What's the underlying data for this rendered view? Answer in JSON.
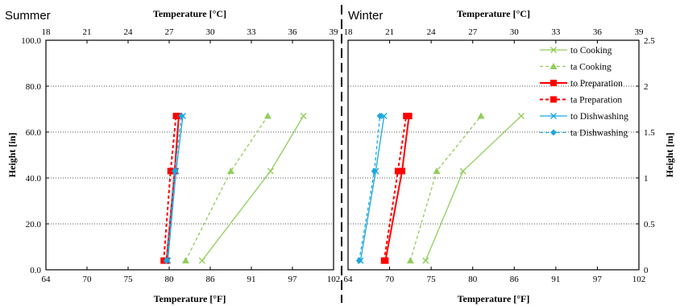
{
  "panels": {
    "summer": "Summer",
    "winter": "Winter"
  },
  "chart_data": [
    {
      "type": "line",
      "panel": "Summer",
      "xlabel_top": "Temperature [°C]",
      "xlabel_bottom": "Temperature [°F]",
      "ylabel_left": "Height [in]",
      "x_ticks_top": [
        "18",
        "21",
        "24",
        "27",
        "30",
        "33",
        "36",
        "39"
      ],
      "x_ticks_bottom": [
        "64",
        "70",
        "75",
        "80",
        "86",
        "91",
        "97",
        "102"
      ],
      "y_ticks_left": [
        "0.0",
        "20.0",
        "40.0",
        "60.0",
        "80.0",
        "100.0"
      ],
      "xlim_C": [
        18,
        39
      ],
      "ylim_in": [
        0,
        100
      ],
      "grid": true,
      "series": [
        {
          "name": "to Cooking",
          "color": "#8fce5a",
          "dash": false,
          "marker": "x",
          "temperature_C": [
            29.4,
            34.4,
            36.8
          ],
          "height_in": [
            4,
            43,
            67
          ]
        },
        {
          "name": "ta Cooking",
          "color": "#8fce5a",
          "dash": true,
          "marker": "triangle",
          "temperature_C": [
            28.2,
            31.5,
            34.2
          ],
          "height_in": [
            4,
            43,
            67
          ]
        },
        {
          "name": "to Preparation",
          "color": "#ff0000",
          "dash": false,
          "marker": "square",
          "temperature_C": [
            26.8,
            27.4,
            27.7
          ],
          "height_in": [
            4,
            43,
            67
          ]
        },
        {
          "name": "ta Preparation",
          "color": "#ff0000",
          "dash": true,
          "marker": "square",
          "temperature_C": [
            26.6,
            27.1,
            27.5
          ],
          "height_in": [
            4,
            43,
            67
          ]
        },
        {
          "name": "to Dishwashing",
          "color": "#1ba7e0",
          "dash": false,
          "marker": "x",
          "temperature_C": [
            26.9,
            27.5,
            28.0
          ],
          "height_in": [
            4,
            43,
            67
          ]
        },
        {
          "name": "ta Dishwashing",
          "color": "#1ba7e0",
          "dash": true,
          "marker": "diamond",
          "temperature_C": [
            26.8,
            27.4,
            27.9
          ],
          "height_in": [
            4,
            43,
            67
          ]
        }
      ]
    },
    {
      "type": "line",
      "panel": "Winter",
      "xlabel_top": "Temperature [°C]",
      "xlabel_bottom": "Temperature [°F]",
      "ylabel_right": "Height [m]",
      "x_ticks_top": [
        "18",
        "21",
        "24",
        "27",
        "30",
        "33",
        "36",
        "39"
      ],
      "x_ticks_bottom": [
        "64",
        "70",
        "75",
        "80",
        "86",
        "91",
        "97",
        "102"
      ],
      "y_ticks_right": [
        "0",
        "0.5",
        "1",
        "1.5",
        "2",
        "2.5"
      ],
      "xlim_C": [
        18,
        39
      ],
      "ylim_m": [
        0,
        2.5
      ],
      "grid": true,
      "legend_position": "top-right",
      "series": [
        {
          "name": "to Cooking",
          "color": "#8fce5a",
          "dash": false,
          "marker": "x",
          "temperature_C": [
            23.6,
            26.3,
            30.5
          ],
          "height_in": [
            4,
            43,
            67
          ]
        },
        {
          "name": "ta Cooking",
          "color": "#8fce5a",
          "dash": true,
          "marker": "triangle",
          "temperature_C": [
            22.5,
            24.4,
            27.6
          ],
          "height_in": [
            4,
            43,
            67
          ]
        },
        {
          "name": "to Preparation",
          "color": "#ff0000",
          "dash": false,
          "marker": "square",
          "temperature_C": [
            20.7,
            21.9,
            22.4
          ],
          "height_in": [
            4,
            43,
            67
          ]
        },
        {
          "name": "ta Preparation",
          "color": "#ff0000",
          "dash": true,
          "marker": "square",
          "temperature_C": [
            20.6,
            21.6,
            22.2
          ],
          "height_in": [
            4,
            43,
            67
          ]
        },
        {
          "name": "to Dishwashing",
          "color": "#1ba7e0",
          "dash": false,
          "marker": "x",
          "temperature_C": [
            18.9,
            20.0,
            20.6
          ],
          "height_in": [
            4,
            43,
            67
          ]
        },
        {
          "name": "ta Dishwashing",
          "color": "#1ba7e0",
          "dash": true,
          "marker": "diamond",
          "temperature_C": [
            18.8,
            19.9,
            20.3
          ],
          "height_in": [
            4,
            43,
            67
          ]
        }
      ]
    }
  ]
}
